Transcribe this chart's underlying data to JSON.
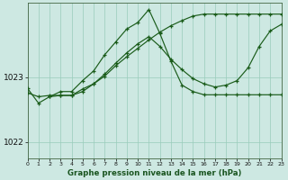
{
  "title": "Graphe pression niveau de la mer (hPa)",
  "bg_color": "#cde8e2",
  "grid_color": "#99ccbb",
  "line_color": "#1a5c1a",
  "xlim": [
    0,
    23
  ],
  "ylim": [
    1021.75,
    1024.15
  ],
  "yticks": [
    1022,
    1023
  ],
  "xticks": [
    0,
    1,
    2,
    3,
    4,
    5,
    6,
    7,
    8,
    9,
    10,
    11,
    12,
    13,
    14,
    15,
    16,
    17,
    18,
    19,
    20,
    21,
    22,
    23
  ],
  "series1_x": [
    0,
    1,
    2,
    3,
    4,
    5,
    6,
    7,
    8,
    9,
    10,
    11,
    12,
    13,
    14,
    15,
    16,
    17,
    18,
    19,
    20,
    21,
    22,
    23
  ],
  "series1_y": [
    1022.83,
    1022.6,
    1022.7,
    1022.78,
    1022.78,
    1022.95,
    1023.1,
    1023.35,
    1023.55,
    1023.75,
    1023.85,
    1024.05,
    1023.68,
    1023.25,
    1022.88,
    1022.78,
    1022.73,
    1022.73,
    1022.73,
    1022.73,
    1022.73,
    1022.73,
    1022.73,
    1022.73
  ],
  "series2_x": [
    2,
    3,
    4,
    5,
    6,
    7,
    8,
    9,
    10,
    11,
    12,
    13,
    14,
    15,
    16,
    17,
    18,
    19,
    20,
    21,
    22,
    23
  ],
  "series2_y": [
    1022.7,
    1022.72,
    1022.72,
    1022.78,
    1022.9,
    1023.05,
    1023.22,
    1023.38,
    1023.52,
    1023.63,
    1023.48,
    1023.28,
    1023.12,
    1022.98,
    1022.9,
    1022.85,
    1022.88,
    1022.95,
    1023.15,
    1023.48,
    1023.72,
    1023.82
  ],
  "series3_x": [
    0,
    1,
    2,
    3,
    4,
    5,
    6,
    7,
    8,
    9,
    10,
    11,
    12,
    13,
    14,
    15,
    16,
    17,
    18,
    19,
    20,
    21,
    22,
    23
  ],
  "series3_y": [
    1022.76,
    1022.7,
    1022.72,
    1022.72,
    1022.72,
    1022.82,
    1022.9,
    1023.02,
    1023.18,
    1023.32,
    1023.45,
    1023.58,
    1023.7,
    1023.8,
    1023.88,
    1023.95,
    1023.98,
    1023.98,
    1023.98,
    1023.98,
    1023.98,
    1023.98,
    1023.98,
    1023.98
  ]
}
